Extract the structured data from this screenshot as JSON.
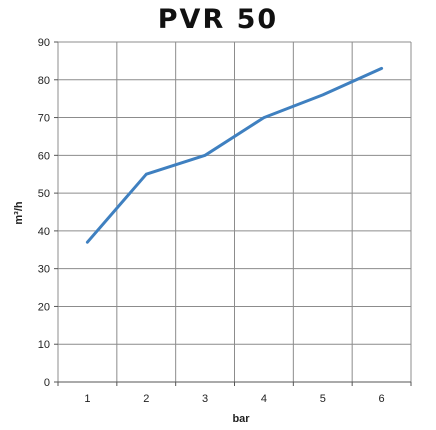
{
  "chart_data": {
    "type": "line",
    "title": "PVR 50",
    "xlabel": "bar",
    "ylabel": "m³/h",
    "x": [
      1,
      2,
      3,
      4,
      5,
      6
    ],
    "series": [
      {
        "values": [
          37,
          55,
          60,
          70,
          76,
          83
        ],
        "color": "#3f80c0"
      }
    ],
    "xticks": [
      "1",
      "2",
      "3",
      "4",
      "5",
      "6"
    ],
    "yticks": [
      "0",
      "10",
      "20",
      "30",
      "40",
      "50",
      "60",
      "70",
      "80",
      "90"
    ],
    "ylim": [
      0,
      90
    ],
    "grid": true,
    "legend": "none",
    "colors": {
      "line": "#3f80c0",
      "grid": "#8c8c8c",
      "axis": "#555555"
    }
  }
}
